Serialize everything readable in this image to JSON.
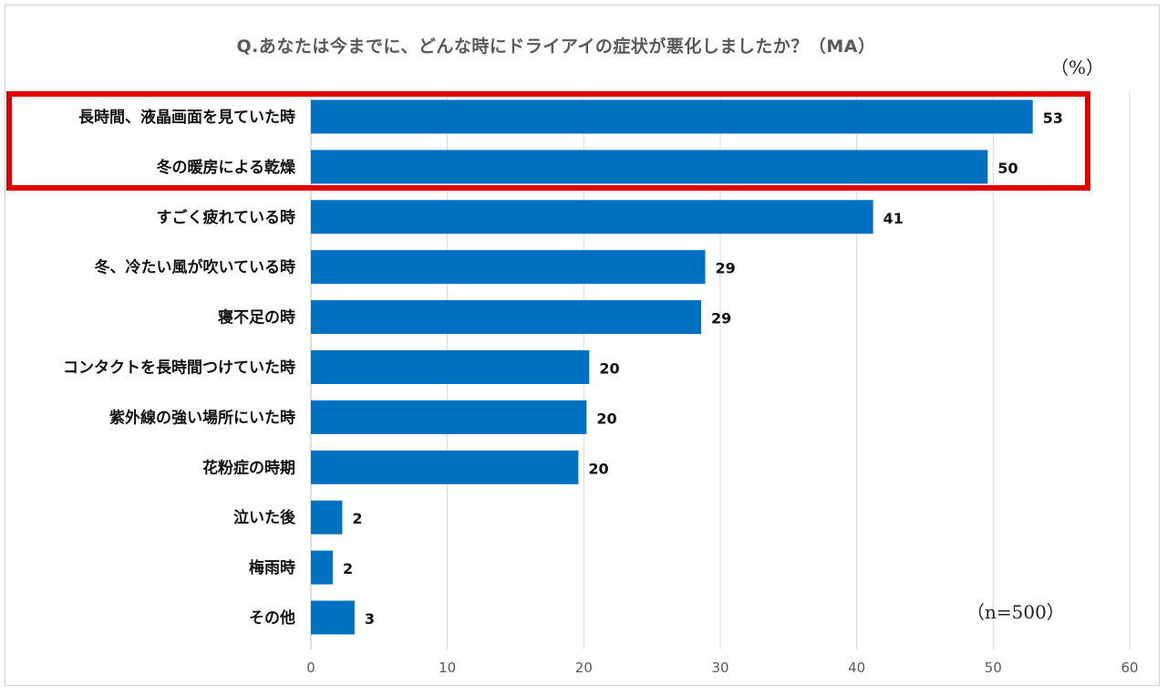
{
  "chart_data": {
    "type": "bar",
    "orientation": "horizontal",
    "title": "Q.あなたは今までに、どんな時にドライアイの症状が悪化しましたか？（MA）",
    "unit": "（%）",
    "sample_size": "（n=500）",
    "categories": [
      "長時間、液晶画面を見ていた時",
      "冬の暖房による乾燥",
      "すごく疲れている時",
      "冬、冷たい風が吹いている時",
      "寝不足の時",
      "コンタクトを長時間つけていた時",
      "紫外線の強い場所にいた時",
      "花粉症の時期",
      "泣いた後",
      "梅雨時",
      "その他"
    ],
    "values": [
      53,
      50,
      41,
      29,
      29,
      20,
      20,
      20,
      2,
      2,
      3
    ],
    "bar_lengths": [
      52.9,
      49.6,
      41.2,
      28.9,
      28.6,
      20.4,
      20.2,
      19.6,
      2.3,
      1.6,
      3.2
    ],
    "xlim": [
      0,
      60
    ],
    "xticks": [
      "0",
      "10",
      "20",
      "30",
      "40",
      "50",
      "60"
    ],
    "grid": true,
    "highlighted_categories": [
      0,
      1
    ],
    "colors": {
      "bar": "#0070c0",
      "grid": "#d9d9d9",
      "highlight": "#e00000"
    }
  }
}
